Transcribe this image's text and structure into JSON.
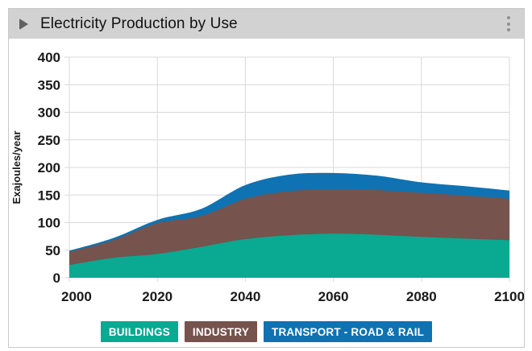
{
  "header": {
    "title": "Electricity Production by Use"
  },
  "colors": {
    "header_bg": "#d2d2d2",
    "card_border": "#c9c9c9",
    "grid": "#d8d8d8",
    "axis_text": "#1a1a1a",
    "teal": "#09a992",
    "brown": "#76534d",
    "blue": "#0f72b2"
  },
  "chart_data": {
    "type": "area",
    "stacked": true,
    "title": "Electricity Production by Use",
    "ylabel": "Exajoules/year",
    "ylim": [
      0,
      400
    ],
    "ytick_step": 50,
    "grid": true,
    "legend_position": "bottom",
    "x": [
      2000,
      2010,
      2020,
      2030,
      2040,
      2050,
      2060,
      2070,
      2080,
      2090,
      2100
    ],
    "xticks": [
      2000,
      2020,
      2040,
      2060,
      2080,
      2100
    ],
    "series": [
      {
        "name": "BUILDINGS",
        "color": "#09a992",
        "values": [
          23,
          36,
          43,
          56,
          70,
          77,
          80,
          78,
          74,
          71,
          68
        ]
      },
      {
        "name": "INDUSTRY",
        "color": "#76534d",
        "values": [
          24,
          32,
          56,
          56,
          73,
          80,
          80,
          81,
          80,
          78,
          75
        ]
      },
      {
        "name": "TRANSPORT - ROAD & RAIL",
        "color": "#0f72b2",
        "values": [
          2,
          4,
          6,
          13,
          25,
          30,
          30,
          26,
          19,
          17,
          15
        ]
      }
    ]
  }
}
